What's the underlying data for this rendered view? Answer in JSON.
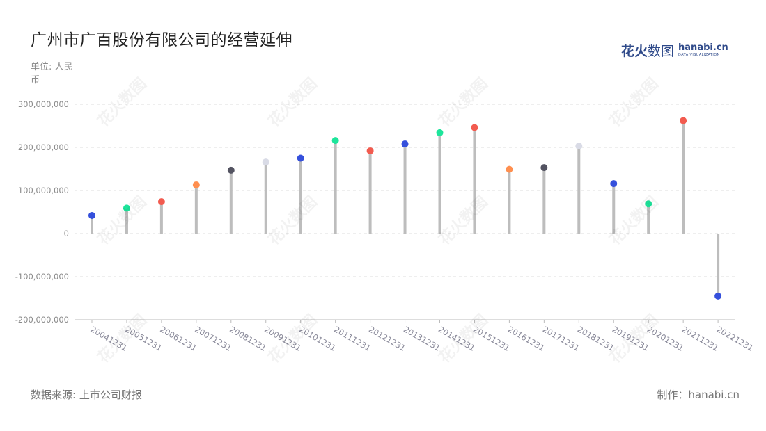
{
  "title": "广州市广百股份有限公司的经营延伸",
  "unit_label": "单位: 人民币",
  "source_label": "数据来源: 上市公司财报",
  "maker_label": "制作：hanabi.cn",
  "logo": {
    "cn_bold": "花火",
    "cn_light": "数图",
    "en": "hanabi.cn",
    "en_sub": "DATA VISUALIZATION",
    "icon": "hanabi-logo-icon"
  },
  "watermark_text": "花火数图",
  "colors": {
    "stem": "#bdbdbd",
    "grid": "#dddddd",
    "axis": "#bbbbbb",
    "tick_text": "#8a8a8a",
    "x_tick_text": "#8a8a9a"
  },
  "chart_data": {
    "type": "lollipop",
    "title": "广州市广百股份有限公司的经营延伸",
    "ylabel": "单位: 人民币",
    "xlabel": "",
    "ylim": [
      -200000000,
      300000000
    ],
    "yticks": [
      -200000000,
      -100000000,
      0,
      100000000,
      200000000,
      300000000
    ],
    "ytick_labels": [
      "-200,000,000",
      "-100,000,000",
      "0",
      "100,000,000",
      "200,000,000",
      "300,000,000"
    ],
    "grid": true,
    "categories": [
      "20041231",
      "20051231",
      "20061231",
      "20071231",
      "20081231",
      "20091231",
      "20101231",
      "20111231",
      "20121231",
      "20131231",
      "20141231",
      "20151231",
      "20161231",
      "20171231",
      "20181231",
      "20191231",
      "20201231",
      "20211231",
      "20221231"
    ],
    "values": [
      42000000,
      59000000,
      74000000,
      113000000,
      147000000,
      166000000,
      175000000,
      216000000,
      192000000,
      208000000,
      234000000,
      246000000,
      149000000,
      153000000,
      203000000,
      116000000,
      69000000,
      262000000,
      -145000000
    ],
    "point_colors": [
      "#3550dc",
      "#1de59b",
      "#f25b4f",
      "#ff8f4f",
      "#535361",
      "#d9dbe6",
      "#3550dc",
      "#1de59b",
      "#f25b4f",
      "#3550dc",
      "#1de59b",
      "#f25b4f",
      "#ff8f4f",
      "#535361",
      "#d9dbe6",
      "#3550dc",
      "#1de59b",
      "#f25b4f",
      "#3550dc"
    ]
  }
}
